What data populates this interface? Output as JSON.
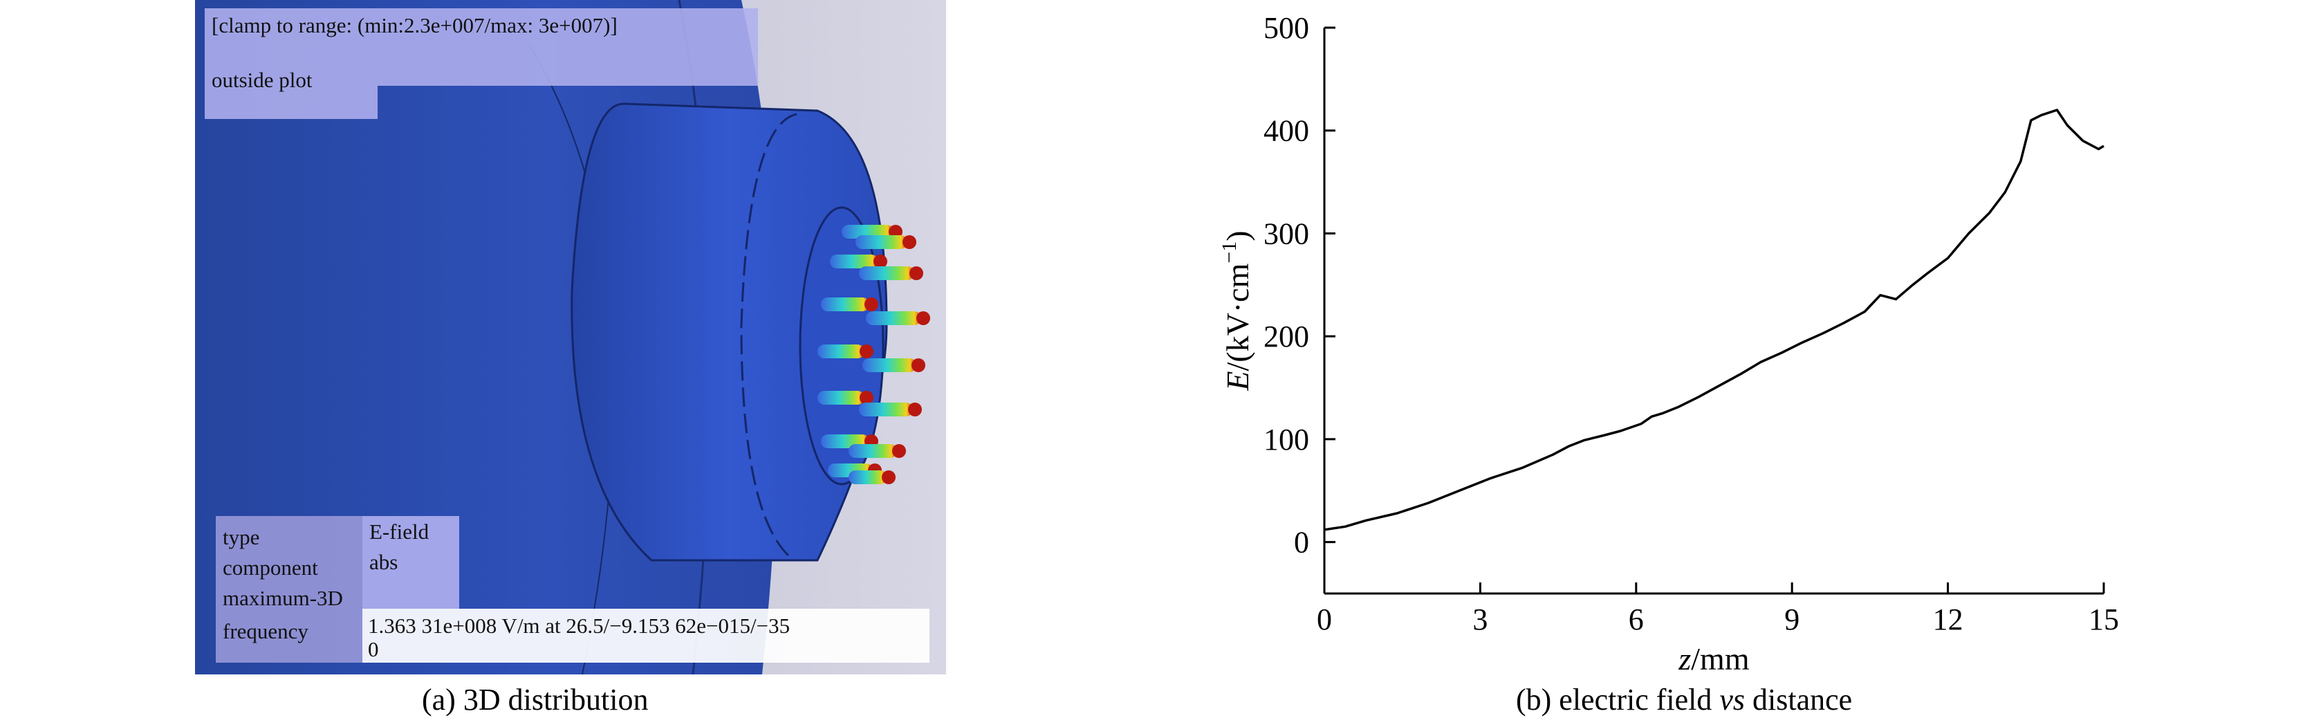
{
  "simulation": {
    "clamp_text": "[clamp to range: (min:2.3e+007/max: 3e+007)]",
    "outside_text": "outside plot",
    "info": {
      "labels": [
        "type",
        "component",
        "maximum-3D",
        "frequency"
      ],
      "type_value": "E-field",
      "component_value": "abs",
      "maximum_value": "1.363 31e+008 V/m at 26.5/−9.153 62e−015/−35",
      "frequency_value": "0"
    },
    "colors": {
      "body": "#2a4fc6",
      "nozzle": "#3562d8",
      "background": "#c4c4d6"
    },
    "caption": "(a) 3D distribution"
  },
  "chart_data": {
    "type": "line",
    "xlabel_italic": "z",
    "xlabel_rest": "/mm",
    "ylabel_italic": "E",
    "ylabel_rest": "/(kV·cm",
    "ylabel_sup": "−1",
    "ylabel_close": ")",
    "xlim": [
      0,
      15
    ],
    "ylim": [
      -50,
      500
    ],
    "xticks": [
      0,
      3,
      6,
      9,
      12,
      15
    ],
    "yticks": [
      0,
      100,
      200,
      300,
      400,
      500
    ],
    "x": [
      0,
      0.4,
      0.8,
      1.4,
      2.0,
      2.6,
      3.2,
      3.8,
      4.4,
      4.7,
      5.0,
      5.4,
      5.7,
      6.1,
      6.3,
      6.5,
      6.8,
      7.2,
      7.6,
      8.0,
      8.4,
      8.8,
      9.2,
      9.6,
      10.0,
      10.4,
      10.7,
      11.0,
      11.3,
      11.6,
      12.0,
      12.4,
      12.8,
      13.1,
      13.4,
      13.6,
      13.8,
      14.1,
      14.3,
      14.6,
      14.9,
      15.0
    ],
    "y": [
      12,
      15,
      21,
      28,
      38,
      50,
      62,
      72,
      85,
      93,
      99,
      104,
      108,
      115,
      122,
      125,
      131,
      141,
      152,
      163,
      175,
      184,
      194,
      203,
      213,
      224,
      240,
      236,
      249,
      261,
      276,
      300,
      320,
      340,
      370,
      410,
      415,
      420,
      405,
      390,
      382,
      385
    ],
    "caption_pre": "(b) electric field ",
    "caption_italic": "vs",
    "caption_post": " distance",
    "line_color": "#000000"
  }
}
